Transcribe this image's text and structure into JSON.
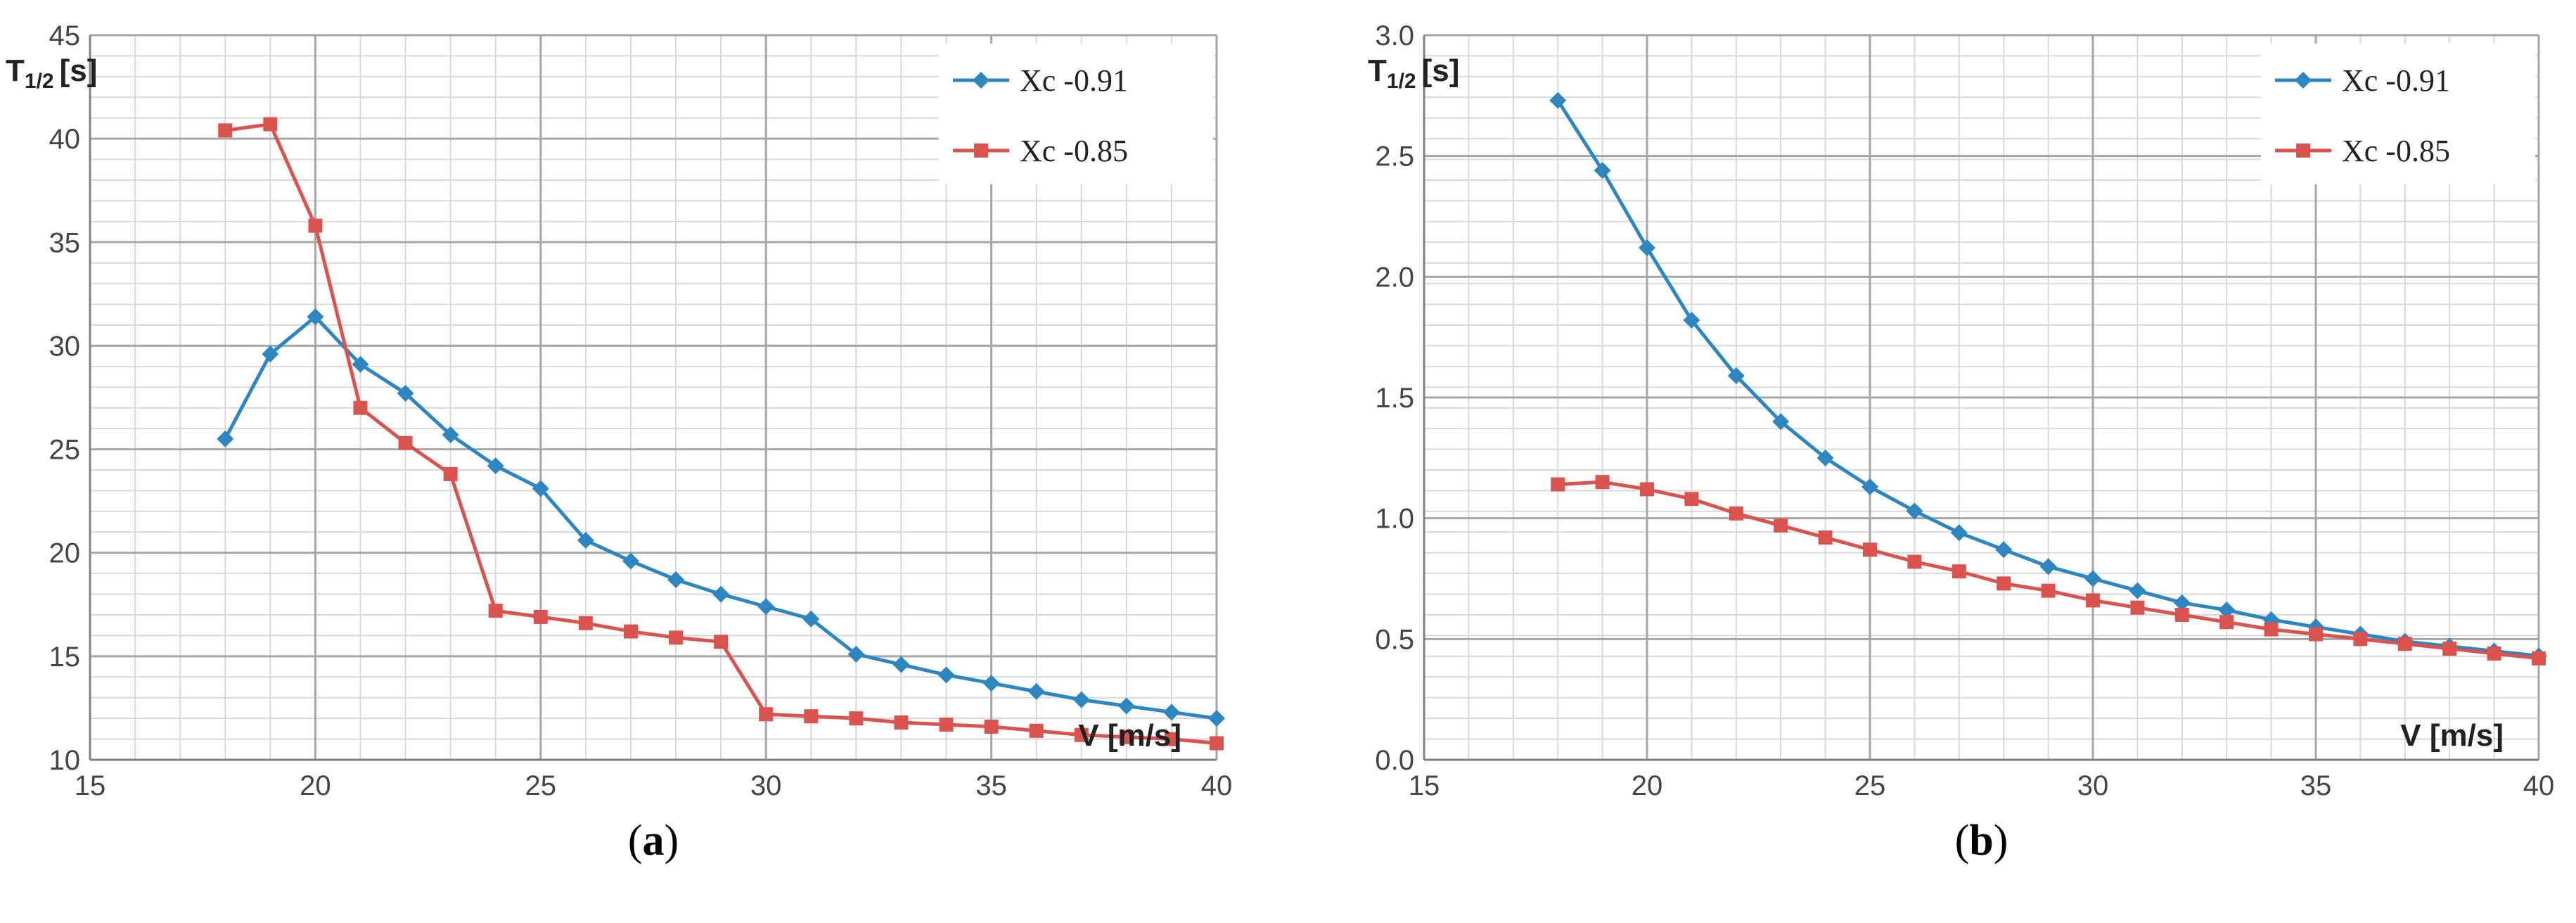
{
  "chart_data": [
    {
      "type": "line",
      "panel": "(a)",
      "panel_letter": "a",
      "xlabel": "V [m/s]",
      "ylabel": "T",
      "ylabel_sub": "1/2",
      "ylabel_unit": "[s]",
      "xlim": [
        15,
        40
      ],
      "ylim": [
        10,
        45
      ],
      "x_ticks": [
        "15",
        "20",
        "25",
        "30",
        "35",
        "40"
      ],
      "y_ticks": [
        "10",
        "15",
        "20",
        "25",
        "30",
        "35",
        "40",
        "45"
      ],
      "legend_position": "top-right",
      "series": [
        {
          "name": "Xc  -0.91",
          "color": "#2e86c1",
          "marker": "diamond",
          "x": [
            18,
            19,
            20,
            21,
            22,
            23,
            24,
            25,
            26,
            27,
            28,
            29,
            30,
            31,
            32,
            33,
            34,
            35,
            36,
            37,
            38,
            39,
            40
          ],
          "y": [
            25.5,
            29.6,
            31.4,
            29.1,
            27.7,
            25.7,
            24.2,
            23.1,
            20.6,
            19.6,
            18.7,
            18.0,
            17.4,
            16.8,
            15.1,
            14.6,
            14.1,
            13.7,
            13.3,
            12.9,
            12.6,
            12.3,
            12.0
          ]
        },
        {
          "name": "Xc  -0.85",
          "color": "#d9534f",
          "marker": "square",
          "x": [
            18,
            19,
            20,
            21,
            22,
            23,
            24,
            25,
            26,
            27,
            28,
            29,
            30,
            31,
            32,
            33,
            34,
            35,
            36,
            37,
            38,
            39,
            40
          ],
          "y": [
            40.4,
            40.7,
            35.8,
            27.0,
            25.3,
            23.8,
            17.2,
            16.9,
            16.6,
            16.2,
            15.9,
            15.7,
            12.2,
            12.1,
            12.0,
            11.8,
            11.7,
            11.6,
            11.4,
            11.2,
            11.1,
            11.0,
            10.8
          ]
        }
      ]
    },
    {
      "type": "line",
      "panel": "(b)",
      "panel_letter": "b",
      "xlabel": "V [m/s]",
      "ylabel": "T",
      "ylabel_sub": "1/2",
      "ylabel_unit": "[s]",
      "xlim": [
        15,
        40
      ],
      "ylim": [
        0,
        3
      ],
      "x_ticks": [
        "15",
        "20",
        "25",
        "30",
        "35",
        "40"
      ],
      "y_ticks": [
        "0.0",
        "0.5",
        "1.0",
        "1.5",
        "2.0",
        "2.5",
        "3.0"
      ],
      "legend_position": "top-right",
      "series": [
        {
          "name": "Xc  -0.91",
          "color": "#2e86c1",
          "marker": "diamond",
          "x": [
            18,
            19,
            20,
            21,
            22,
            23,
            24,
            25,
            26,
            27,
            28,
            29,
            30,
            31,
            32,
            33,
            34,
            35,
            36,
            37,
            38,
            39,
            40
          ],
          "y": [
            2.73,
            2.44,
            2.12,
            1.82,
            1.59,
            1.4,
            1.25,
            1.13,
            1.03,
            0.94,
            0.87,
            0.8,
            0.75,
            0.7,
            0.65,
            0.62,
            0.58,
            0.55,
            0.52,
            0.49,
            0.47,
            0.45,
            0.43
          ]
        },
        {
          "name": "Xc  -0.85",
          "color": "#d9534f",
          "marker": "square",
          "x": [
            18,
            19,
            20,
            21,
            22,
            23,
            24,
            25,
            26,
            27,
            28,
            29,
            30,
            31,
            32,
            33,
            34,
            35,
            36,
            37,
            38,
            39,
            40
          ],
          "y": [
            1.14,
            1.15,
            1.12,
            1.08,
            1.02,
            0.97,
            0.92,
            0.87,
            0.82,
            0.78,
            0.73,
            0.7,
            0.66,
            0.63,
            0.6,
            0.57,
            0.54,
            0.52,
            0.5,
            0.48,
            0.46,
            0.44,
            0.42
          ]
        }
      ]
    }
  ]
}
